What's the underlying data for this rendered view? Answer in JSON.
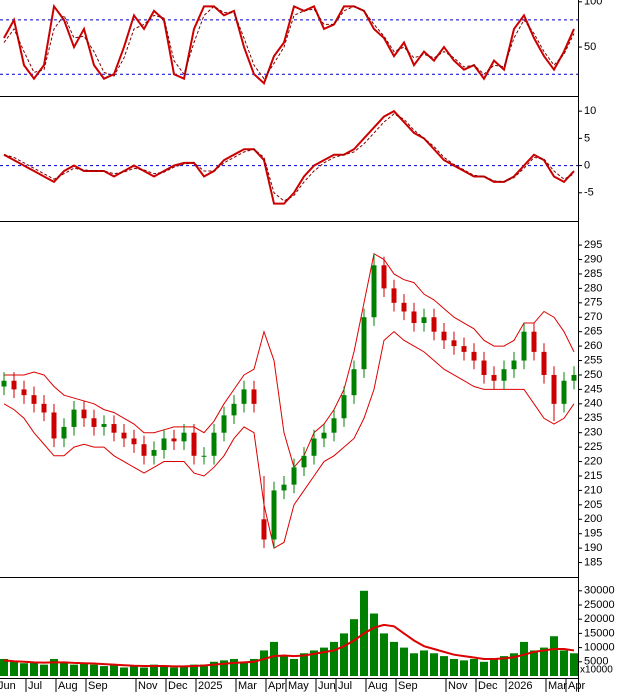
{
  "chart_data": [
    {
      "type": "line",
      "ylim": [
        -3,
        102
      ],
      "yticks": [
        50,
        100
      ],
      "levels": [
        80,
        20
      ],
      "level_color": "#0000cc",
      "series": [
        {
          "color": "#cc0000",
          "values": [
            60,
            80,
            30,
            15,
            30,
            95,
            80,
            50,
            70,
            30,
            15,
            20,
            50,
            85,
            70,
            90,
            80,
            20,
            15,
            70,
            95,
            95,
            85,
            90,
            50,
            20,
            10,
            40,
            55,
            95,
            90,
            95,
            70,
            75,
            95,
            95,
            90,
            70,
            60,
            40,
            55,
            30,
            45,
            35,
            50,
            35,
            25,
            30,
            15,
            35,
            25,
            70,
            85,
            60,
            40,
            25,
            45,
            70
          ]
        },
        {
          "color": "#800000",
          "values": [
            55,
            70,
            45,
            22,
            25,
            70,
            85,
            60,
            62,
            45,
            22,
            18,
            38,
            70,
            75,
            85,
            82,
            35,
            20,
            55,
            85,
            95,
            88,
            88,
            60,
            30,
            15,
            32,
            50,
            85,
            90,
            92,
            75,
            75,
            90,
            95,
            90,
            75,
            62,
            45,
            50,
            38,
            42,
            38,
            45,
            38,
            28,
            30,
            20,
            30,
            28,
            60,
            80,
            65,
            45,
            30,
            42,
            65
          ]
        }
      ]
    },
    {
      "type": "line",
      "ylim": [
        -10,
        12.6
      ],
      "yticks": [
        10,
        5,
        0,
        -5
      ],
      "levels": [
        0
      ],
      "level_color": "#0000cc",
      "series": [
        {
          "color": "#cc0000",
          "values": [
            2,
            1,
            0,
            -1,
            -2,
            -3,
            -1,
            0,
            -1,
            -1,
            -1,
            -2,
            -1,
            0,
            -1,
            -2,
            -1,
            0,
            0.5,
            0.5,
            -2,
            -1,
            1,
            2,
            3,
            3,
            1,
            -7,
            -7,
            -5,
            -2,
            0,
            1,
            2,
            2,
            3,
            5,
            7,
            9,
            10,
            8,
            6,
            5,
            3,
            1,
            0,
            -1,
            -2,
            -2,
            -3,
            -3,
            -2,
            0,
            2,
            1,
            -2,
            -3,
            -1
          ]
        },
        {
          "color": "#800000",
          "values": [
            2,
            1.5,
            0.5,
            -0.5,
            -1.5,
            -2.5,
            -1.5,
            -0.5,
            -0.8,
            -1,
            -1,
            -1.5,
            -1.2,
            -0.5,
            -0.8,
            -1.5,
            -1.2,
            -0.3,
            0.3,
            0.5,
            -1,
            -1,
            0.5,
            1.5,
            2.5,
            3,
            1.5,
            -5,
            -6.5,
            -5.5,
            -3,
            -1,
            0.5,
            1.5,
            2,
            2.5,
            4,
            6,
            8,
            9.5,
            8.5,
            6.5,
            5,
            3.5,
            1.5,
            0.2,
            -0.8,
            -1.8,
            -2,
            -2.8,
            -3,
            -2.2,
            -0.5,
            1.5,
            1.2,
            -1,
            -2.5,
            -1.5
          ]
        }
      ]
    },
    {
      "type": "candlestick",
      "ylim": [
        180,
        303
      ],
      "yticks": [
        185,
        190,
        195,
        200,
        205,
        210,
        215,
        220,
        225,
        230,
        235,
        240,
        245,
        250,
        255,
        260,
        265,
        270,
        275,
        280,
        285,
        290,
        295
      ],
      "up_color": "#008000",
      "down_color": "#cc0000",
      "open": [
        246,
        248,
        245,
        243,
        240,
        237,
        228,
        232,
        238,
        235,
        232,
        233,
        230,
        228,
        226,
        222,
        224,
        228,
        227,
        230,
        222,
        222,
        230,
        236,
        240,
        245,
        200,
        193,
        210,
        212,
        218,
        222,
        228,
        230,
        235,
        243,
        252,
        270,
        288,
        280,
        275,
        272,
        268,
        270,
        265,
        262,
        260,
        258,
        255,
        250,
        248,
        252,
        255,
        265,
        258,
        250,
        240,
        248
      ],
      "high": [
        251,
        251,
        248,
        246,
        243,
        240,
        235,
        241,
        241,
        238,
        236,
        236,
        233,
        231,
        229,
        227,
        231,
        231,
        233,
        233,
        225,
        233,
        239,
        243,
        248,
        248,
        215,
        213,
        215,
        221,
        225,
        231,
        233,
        238,
        246,
        255,
        273,
        292,
        291,
        283,
        278,
        275,
        273,
        273,
        268,
        265,
        263,
        261,
        258,
        253,
        255,
        258,
        268,
        268,
        261,
        253,
        251,
        253
      ],
      "low": [
        243,
        242,
        240,
        237,
        234,
        225,
        225,
        229,
        232,
        229,
        229,
        227,
        225,
        223,
        219,
        219,
        221,
        224,
        224,
        219,
        219,
        219,
        227,
        233,
        237,
        237,
        190,
        190,
        207,
        209,
        215,
        219,
        225,
        227,
        232,
        240,
        249,
        267,
        277,
        272,
        269,
        265,
        265,
        262,
        259,
        257,
        255,
        252,
        247,
        245,
        245,
        249,
        252,
        255,
        247,
        234,
        237,
        245
      ],
      "close": [
        248,
        245,
        243,
        240,
        237,
        228,
        232,
        238,
        235,
        232,
        233,
        230,
        228,
        226,
        222,
        224,
        228,
        227,
        230,
        222,
        222,
        230,
        236,
        240,
        245,
        240,
        193,
        210,
        212,
        218,
        222,
        228,
        230,
        235,
        243,
        252,
        270,
        288,
        280,
        275,
        272,
        268,
        270,
        265,
        262,
        260,
        258,
        255,
        250,
        248,
        252,
        255,
        265,
        258,
        250,
        240,
        248,
        250
      ],
      "bands": {
        "color": "#dd0000",
        "upper": [
          250,
          250,
          250,
          251,
          250,
          246,
          243,
          242,
          241,
          240,
          238,
          237,
          235,
          233,
          230,
          230,
          231,
          232,
          232,
          232,
          230,
          234,
          240,
          245,
          250,
          252,
          265,
          255,
          230,
          218,
          222,
          230,
          233,
          238,
          245,
          258,
          275,
          292,
          290,
          285,
          283,
          282,
          278,
          276,
          273,
          270,
          268,
          266,
          262,
          260,
          260,
          262,
          268,
          268,
          272,
          270,
          265,
          258
        ],
        "lower": [
          240,
          238,
          235,
          230,
          226,
          222,
          222,
          225,
          226,
          225,
          225,
          222,
          220,
          218,
          216,
          218,
          220,
          220,
          220,
          216,
          215,
          218,
          222,
          228,
          232,
          230,
          205,
          190,
          192,
          205,
          210,
          215,
          220,
          222,
          225,
          228,
          235,
          245,
          262,
          265,
          262,
          260,
          258,
          255,
          252,
          250,
          248,
          246,
          245,
          245,
          245,
          245,
          245,
          240,
          235,
          233,
          235,
          240
        ]
      }
    },
    {
      "type": "bar",
      "ylim": [
        0,
        34500
      ],
      "yticks": [
        5000,
        10000,
        15000,
        20000,
        25000,
        30000
      ],
      "unit_label": "x10000",
      "color": "#008000",
      "categories": [
        "Jun",
        null,
        null,
        "Jul",
        null,
        null,
        "Aug",
        null,
        null,
        "Sep",
        null,
        null,
        null,
        null,
        "Nov",
        null,
        null,
        "Dec",
        null,
        null,
        "2025",
        null,
        null,
        null,
        "Mar",
        null,
        null,
        "Apr",
        null,
        "May",
        null,
        null,
        "Jun",
        null,
        "Jul",
        null,
        null,
        "Aug",
        null,
        null,
        "Sep",
        null,
        null,
        null,
        null,
        "Nov",
        null,
        null,
        "Dec",
        null,
        null,
        "2026",
        null,
        null,
        null,
        "Mar",
        null,
        "Apr"
      ],
      "values": [
        6000,
        5000,
        4500,
        5000,
        4000,
        6000,
        5000,
        4000,
        4500,
        4000,
        3500,
        4000,
        3000,
        3500,
        3000,
        4000,
        3500,
        3000,
        3500,
        4000,
        4000,
        5000,
        5500,
        6000,
        5000,
        6000,
        9000,
        12000,
        7000,
        6000,
        8000,
        9000,
        10000,
        12000,
        15000,
        20000,
        30000,
        22000,
        15000,
        12000,
        10000,
        8000,
        9000,
        8000,
        7000,
        6000,
        5500,
        6000,
        5000,
        6000,
        7000,
        8000,
        12000,
        9000,
        10000,
        14000,
        9000,
        8000
      ],
      "ma": {
        "color": "#dd0000",
        "values": [
          5500,
          5200,
          5000,
          4800,
          4700,
          4800,
          4800,
          4600,
          4500,
          4400,
          4200,
          4000,
          3800,
          3600,
          3500,
          3500,
          3500,
          3400,
          3400,
          3500,
          3700,
          4000,
          4300,
          4600,
          4800,
          5000,
          6000,
          7000,
          7200,
          7000,
          7200,
          7800,
          8400,
          9000,
          10500,
          12500,
          15000,
          17000,
          18000,
          17500,
          15000,
          12500,
          10500,
          9500,
          8500,
          7500,
          7000,
          6500,
          6000,
          6000,
          6200,
          6600,
          7500,
          8500,
          9000,
          9500,
          9500,
          9000
        ]
      }
    }
  ]
}
